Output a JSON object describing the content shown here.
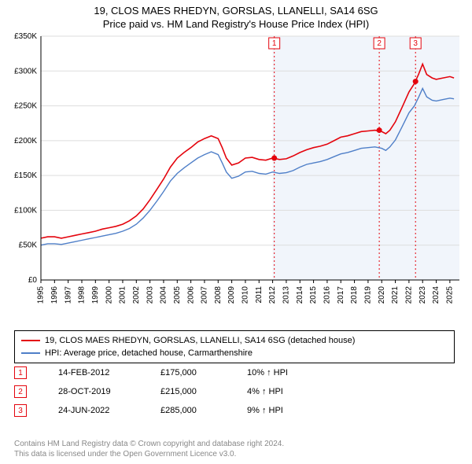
{
  "title_line1": "19, CLOS MAES RHEDYN, GORSLAS, LLANELLI, SA14 6SG",
  "title_line2": "Price paid vs. HM Land Registry's House Price Index (HPI)",
  "chart": {
    "type": "line",
    "plot_background": "#ffffff",
    "shaded_background": "#f1f5fb",
    "shade_from_year": 2012,
    "x": {
      "min": 1995,
      "max": 2025.7,
      "ticks": [
        1995,
        1996,
        1997,
        1998,
        1999,
        2000,
        2001,
        2002,
        2003,
        2004,
        2005,
        2006,
        2007,
        2008,
        2009,
        2010,
        2011,
        2012,
        2013,
        2014,
        2015,
        2016,
        2017,
        2018,
        2019,
        2020,
        2021,
        2022,
        2023,
        2024,
        2025
      ],
      "tick_labels": [
        "1995",
        "1996",
        "1997",
        "1998",
        "1999",
        "2000",
        "2001",
        "2002",
        "2003",
        "2004",
        "2005",
        "2006",
        "2007",
        "2008",
        "2009",
        "2010",
        "2011",
        "2012",
        "2013",
        "2014",
        "2015",
        "2016",
        "2017",
        "2018",
        "2019",
        "2020",
        "2021",
        "2022",
        "2023",
        "2024",
        "2025"
      ],
      "tick_fontsize": 10,
      "tick_color": "#000000",
      "label_rotation": -90
    },
    "y": {
      "min": 0,
      "max": 350,
      "ticks": [
        0,
        50,
        100,
        150,
        200,
        250,
        300,
        350
      ],
      "tick_labels": [
        "£0",
        "£50K",
        "£100K",
        "£150K",
        "£200K",
        "£250K",
        "£300K",
        "£350K"
      ],
      "tick_fontsize": 10,
      "tick_color": "#000000",
      "grid": true,
      "grid_color": "#dddddd"
    },
    "series": [
      {
        "name": "property",
        "color": "#e4040d",
        "width": 1.6,
        "points": [
          [
            1995,
            60
          ],
          [
            1995.5,
            62
          ],
          [
            1996,
            62
          ],
          [
            1996.5,
            60
          ],
          [
            1997,
            62
          ],
          [
            1997.5,
            64
          ],
          [
            1998,
            66
          ],
          [
            1998.5,
            68
          ],
          [
            1999,
            70
          ],
          [
            1999.5,
            73
          ],
          [
            2000,
            75
          ],
          [
            2000.5,
            77
          ],
          [
            2001,
            80
          ],
          [
            2001.5,
            85
          ],
          [
            2002,
            92
          ],
          [
            2002.5,
            102
          ],
          [
            2003,
            115
          ],
          [
            2003.5,
            130
          ],
          [
            2004,
            145
          ],
          [
            2004.5,
            162
          ],
          [
            2005,
            175
          ],
          [
            2005.5,
            183
          ],
          [
            2006,
            190
          ],
          [
            2006.5,
            198
          ],
          [
            2007,
            203
          ],
          [
            2007.5,
            207
          ],
          [
            2008,
            203
          ],
          [
            2008.3,
            190
          ],
          [
            2008.6,
            175
          ],
          [
            2009,
            165
          ],
          [
            2009.5,
            168
          ],
          [
            2010,
            175
          ],
          [
            2010.5,
            176
          ],
          [
            2011,
            173
          ],
          [
            2011.5,
            172
          ],
          [
            2012,
            175
          ],
          [
            2012.5,
            173
          ],
          [
            2013,
            174
          ],
          [
            2013.5,
            178
          ],
          [
            2014,
            183
          ],
          [
            2014.5,
            187
          ],
          [
            2015,
            190
          ],
          [
            2015.5,
            192
          ],
          [
            2016,
            195
          ],
          [
            2016.5,
            200
          ],
          [
            2017,
            205
          ],
          [
            2017.5,
            207
          ],
          [
            2018,
            210
          ],
          [
            2018.5,
            213
          ],
          [
            2019,
            214
          ],
          [
            2019.5,
            215
          ],
          [
            2020,
            213
          ],
          [
            2020.3,
            210
          ],
          [
            2020.6,
            215
          ],
          [
            2021,
            227
          ],
          [
            2021.5,
            248
          ],
          [
            2022,
            270
          ],
          [
            2022.4,
            282
          ],
          [
            2022.7,
            295
          ],
          [
            2023,
            310
          ],
          [
            2023.3,
            295
          ],
          [
            2023.7,
            290
          ],
          [
            2024,
            288
          ],
          [
            2024.5,
            290
          ],
          [
            2025,
            292
          ],
          [
            2025.3,
            290
          ]
        ]
      },
      {
        "name": "hpi",
        "color": "#4f7fc8",
        "width": 1.4,
        "points": [
          [
            1995,
            50
          ],
          [
            1995.5,
            52
          ],
          [
            1996,
            52
          ],
          [
            1996.5,
            51
          ],
          [
            1997,
            53
          ],
          [
            1997.5,
            55
          ],
          [
            1998,
            57
          ],
          [
            1998.5,
            59
          ],
          [
            1999,
            61
          ],
          [
            1999.5,
            63
          ],
          [
            2000,
            65
          ],
          [
            2000.5,
            67
          ],
          [
            2001,
            70
          ],
          [
            2001.5,
            74
          ],
          [
            2002,
            80
          ],
          [
            2002.5,
            89
          ],
          [
            2003,
            100
          ],
          [
            2003.5,
            113
          ],
          [
            2004,
            127
          ],
          [
            2004.5,
            142
          ],
          [
            2005,
            153
          ],
          [
            2005.5,
            161
          ],
          [
            2006,
            168
          ],
          [
            2006.5,
            175
          ],
          [
            2007,
            180
          ],
          [
            2007.5,
            184
          ],
          [
            2008,
            180
          ],
          [
            2008.3,
            168
          ],
          [
            2008.6,
            155
          ],
          [
            2009,
            146
          ],
          [
            2009.5,
            149
          ],
          [
            2010,
            155
          ],
          [
            2010.5,
            156
          ],
          [
            2011,
            153
          ],
          [
            2011.5,
            152
          ],
          [
            2012,
            155
          ],
          [
            2012.5,
            153
          ],
          [
            2013,
            154
          ],
          [
            2013.5,
            157
          ],
          [
            2014,
            162
          ],
          [
            2014.5,
            166
          ],
          [
            2015,
            168
          ],
          [
            2015.5,
            170
          ],
          [
            2016,
            173
          ],
          [
            2016.5,
            177
          ],
          [
            2017,
            181
          ],
          [
            2017.5,
            183
          ],
          [
            2018,
            186
          ],
          [
            2018.5,
            189
          ],
          [
            2019,
            190
          ],
          [
            2019.5,
            191
          ],
          [
            2020,
            189
          ],
          [
            2020.3,
            186
          ],
          [
            2020.6,
            191
          ],
          [
            2021,
            201
          ],
          [
            2021.5,
            220
          ],
          [
            2022,
            240
          ],
          [
            2022.4,
            250
          ],
          [
            2022.7,
            262
          ],
          [
            2023,
            275
          ],
          [
            2023.3,
            263
          ],
          [
            2023.7,
            258
          ],
          [
            2024,
            257
          ],
          [
            2024.5,
            259
          ],
          [
            2025,
            261
          ],
          [
            2025.3,
            260
          ]
        ]
      }
    ],
    "event_markers": [
      {
        "n": "1",
        "year": 2012.12,
        "price": 175,
        "color": "#e4040d"
      },
      {
        "n": "2",
        "year": 2019.82,
        "price": 215,
        "color": "#e4040d"
      },
      {
        "n": "3",
        "year": 2022.48,
        "price": 285,
        "color": "#e4040d"
      }
    ]
  },
  "legend": {
    "items": [
      {
        "color": "#e4040d",
        "label": "19, CLOS MAES RHEDYN, GORSLAS, LLANELLI, SA14 6SG (detached house)"
      },
      {
        "color": "#4f7fc8",
        "label": "HPI: Average price, detached house, Carmarthenshire"
      }
    ]
  },
  "events": [
    {
      "n": "1",
      "date": "14-FEB-2012",
      "price": "£175,000",
      "diff": "10% ↑ HPI",
      "color": "#e4040d"
    },
    {
      "n": "2",
      "date": "28-OCT-2019",
      "price": "£215,000",
      "diff": "4% ↑ HPI",
      "color": "#e4040d"
    },
    {
      "n": "3",
      "date": "24-JUN-2022",
      "price": "£285,000",
      "diff": "9% ↑ HPI",
      "color": "#e4040d"
    }
  ],
  "footer": {
    "line1": "Contains HM Land Registry data © Crown copyright and database right 2024.",
    "line2": "This data is licensed under the Open Government Licence v3.0."
  }
}
